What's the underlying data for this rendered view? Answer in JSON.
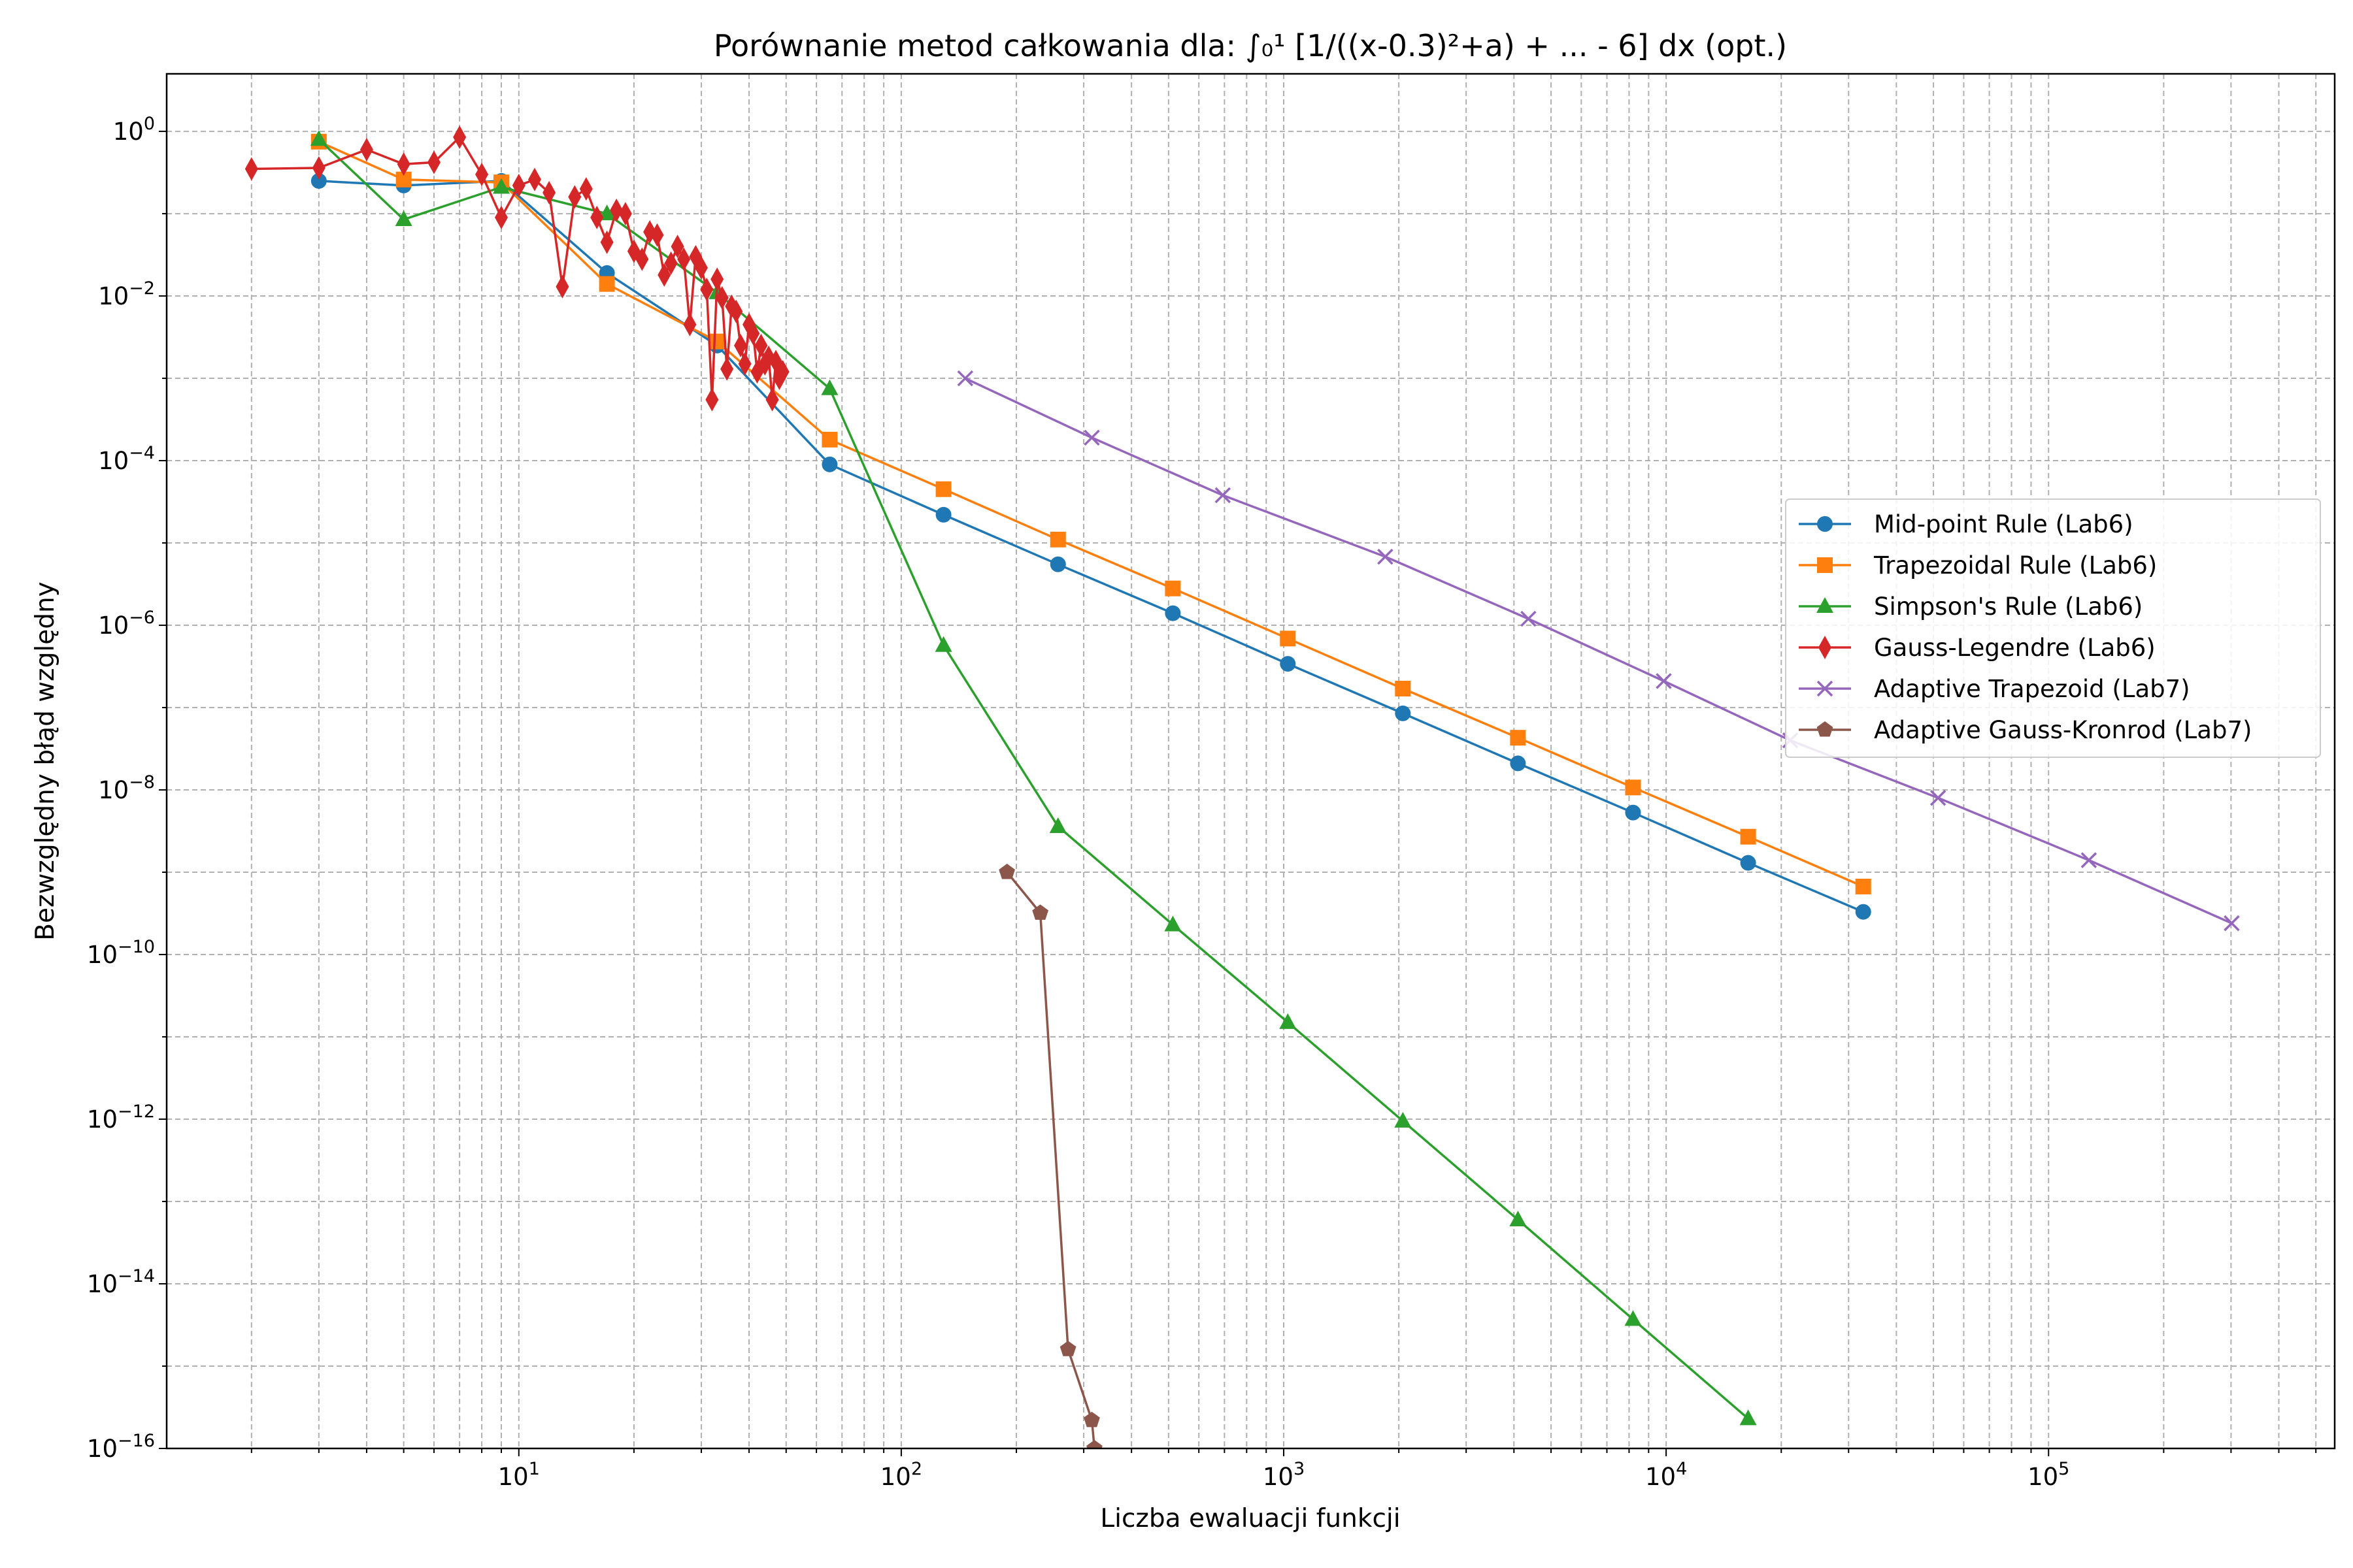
{
  "chart_data": {
    "type": "line",
    "title": "Porównanie metod całkowania dla: ∫₀¹ [1/((x-0.3)²+a) + ... - 6] dx (opt.)",
    "xlabel": "Liczba ewaluacji funkcji",
    "ylabel": "Bezwzględny błąd względny",
    "xscale": "log",
    "yscale": "log",
    "xlim": [
      1.2,
      560000
    ],
    "ylim": [
      1e-16,
      5
    ],
    "grid": "both (major and minor), dashed",
    "legend_position": "center-right",
    "x_tick_labels": [
      {
        "base": "10",
        "exp": "1",
        "value": 10
      },
      {
        "base": "10",
        "exp": "2",
        "value": 100
      },
      {
        "base": "10",
        "exp": "3",
        "value": 1000
      },
      {
        "base": "10",
        "exp": "4",
        "value": 10000
      },
      {
        "base": "10",
        "exp": "5",
        "value": 100000
      }
    ],
    "y_tick_labels": [
      {
        "base": "10",
        "exp": "0",
        "value": 1
      },
      {
        "base": "10",
        "exp": "−2",
        "value": 0.01
      },
      {
        "base": "10",
        "exp": "−4",
        "value": 0.0001
      },
      {
        "base": "10",
        "exp": "−6",
        "value": 1e-06
      },
      {
        "base": "10",
        "exp": "−8",
        "value": 1e-08
      },
      {
        "base": "10",
        "exp": "−10",
        "value": 1e-10
      },
      {
        "base": "10",
        "exp": "−12",
        "value": 1e-12
      },
      {
        "base": "10",
        "exp": "−14",
        "value": 1e-14
      },
      {
        "base": "10",
        "exp": "−16",
        "value": 1e-16
      }
    ],
    "series": [
      {
        "name": "Mid-point Rule (Lab6)",
        "color": "#1f77b4",
        "marker": "circle",
        "x": [
          3,
          5,
          9,
          17,
          33,
          65,
          129,
          257,
          513,
          1025,
          2049,
          4097,
          8193,
          16385,
          32769
        ],
        "y": [
          0.25,
          0.22,
          0.25,
          0.019,
          0.0025,
          9e-05,
          2.2e-05,
          5.5e-06,
          1.4e-06,
          3.4e-07,
          8.5e-08,
          2.1e-08,
          5.3e-09,
          1.3e-09,
          3.3e-10
        ]
      },
      {
        "name": "Trapezoidal Rule (Lab6)",
        "color": "#ff7f0e",
        "marker": "square",
        "x": [
          3,
          5,
          9,
          17,
          33,
          65,
          129,
          257,
          513,
          1025,
          2049,
          4097,
          8193,
          16385,
          32769
        ],
        "y": [
          0.75,
          0.26,
          0.24,
          0.014,
          0.0028,
          0.00018,
          4.5e-05,
          1.1e-05,
          2.8e-06,
          6.9e-07,
          1.7e-07,
          4.3e-08,
          1.07e-08,
          2.7e-09,
          6.7e-10
        ]
      },
      {
        "name": "Simpson's Rule (Lab6)",
        "color": "#2ca02c",
        "marker": "triangle",
        "x": [
          3,
          5,
          9,
          17,
          33,
          65,
          129,
          257,
          513,
          1025,
          2049,
          4097,
          8193,
          16385
        ],
        "y": [
          0.8,
          0.085,
          0.21,
          0.1,
          0.011,
          0.00075,
          5.7e-07,
          3.6e-09,
          2.3e-10,
          1.5e-11,
          9.5e-13,
          6e-14,
          3.7e-15,
          2.3e-16
        ]
      },
      {
        "name": "Gauss-Legendre (Lab6)",
        "color": "#d62728",
        "marker": "thin_diamond",
        "x": [
          2,
          3,
          4,
          5,
          6,
          7,
          8,
          9,
          10,
          11,
          12,
          13,
          14,
          15,
          16,
          17,
          18,
          19,
          20,
          21,
          22,
          23,
          24,
          25,
          26,
          27,
          28,
          29,
          30,
          31,
          32,
          33,
          34,
          35,
          36,
          37,
          38,
          39,
          40,
          41,
          42,
          43,
          44,
          45,
          46,
          47,
          48,
          49
        ],
        "y": [
          0.35,
          0.36,
          0.6,
          0.4,
          0.42,
          0.85,
          0.3,
          0.09,
          0.22,
          0.26,
          0.18,
          0.013,
          0.16,
          0.2,
          0.09,
          0.045,
          0.11,
          0.1,
          0.035,
          0.028,
          0.06,
          0.055,
          0.018,
          0.025,
          0.04,
          0.028,
          0.0045,
          0.03,
          0.022,
          0.012,
          0.00055,
          0.016,
          0.0095,
          0.0013,
          0.0075,
          0.0065,
          0.0025,
          0.0015,
          0.0045,
          0.0035,
          0.0012,
          0.0025,
          0.0015,
          0.0018,
          0.00055,
          0.0016,
          0.001,
          0.0012
        ]
      },
      {
        "name": "Adaptive Trapezoid (Lab7)",
        "color": "#9467bd",
        "marker": "x",
        "x": [
          147,
          315,
          693,
          1843,
          4363,
          9857,
          21113,
          51415,
          127447,
          301209
        ],
        "y": [
          0.001,
          0.00019,
          3.8e-05,
          6.8e-06,
          1.2e-06,
          2.1e-07,
          4e-08,
          8e-09,
          1.4e-09,
          2.4e-10
        ]
      },
      {
        "name": "Adaptive Gauss-Kronrod (Lab7)",
        "color": "#8c564b",
        "marker": "pentagon",
        "x": [
          189,
          231,
          273,
          315,
          320
        ],
        "y": [
          1e-09,
          3.2e-10,
          1.6e-15,
          2.2e-16,
          1e-16
        ]
      }
    ]
  }
}
